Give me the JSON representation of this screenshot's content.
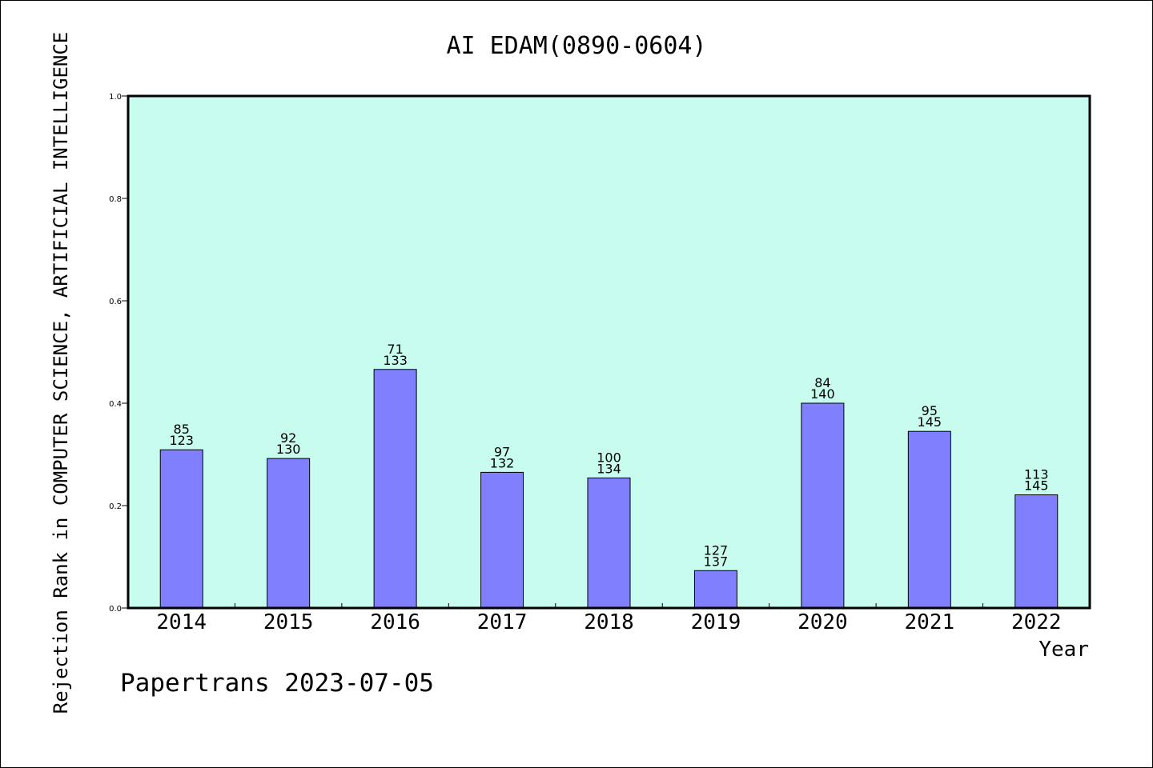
{
  "chart_data": {
    "type": "bar",
    "title": "AI EDAM(0890-0604)",
    "xlabel": "Year",
    "ylabel": "Rejection Rank in COMPUTER SCIENCE, ARTIFICIAL INTELLIGENCE",
    "ylim": [
      0,
      1.0
    ],
    "yticks": [
      "0.0",
      "0.2",
      "0.4",
      "0.6",
      "0.8",
      "1.0"
    ],
    "categories": [
      "2014",
      "2015",
      "2016",
      "2017",
      "2018",
      "2019",
      "2020",
      "2021",
      "2022"
    ],
    "values": [
      0.309,
      0.292,
      0.466,
      0.265,
      0.254,
      0.073,
      0.4,
      0.345,
      0.221
    ],
    "labels_top": [
      "85",
      "92",
      "71",
      "97",
      "100",
      "127",
      "84",
      "95",
      "113"
    ],
    "labels_bottom": [
      "123",
      "130",
      "133",
      "132",
      "134",
      "137",
      "140",
      "145",
      "145"
    ],
    "grid": false,
    "colors": {
      "plot_background": "#c8fcee",
      "bar_fill": "#8080ff",
      "bar_stroke": "#000000"
    }
  },
  "footer": {
    "watermark": "Papertrans 2023-07-05"
  }
}
